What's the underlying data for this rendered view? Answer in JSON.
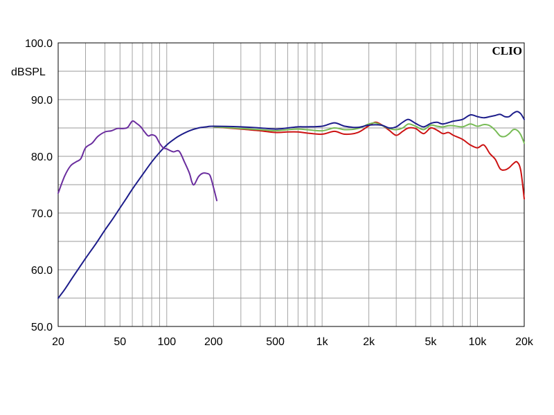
{
  "chart_data": {
    "type": "line",
    "brand": "CLIO",
    "ylabel": "dBSPL",
    "xscale": "log",
    "xlim": [
      20,
      20000
    ],
    "ylim": [
      50,
      100
    ],
    "grid": true,
    "y_ticks": [
      {
        "value": 100,
        "label": "100.0"
      },
      {
        "value": 90,
        "label": "90.0"
      },
      {
        "value": 80,
        "label": "80.0"
      },
      {
        "value": 70,
        "label": "70.0"
      },
      {
        "value": 60,
        "label": "60.0"
      },
      {
        "value": 50,
        "label": "50.0"
      }
    ],
    "x_ticks": [
      {
        "value": 20,
        "label": "20"
      },
      {
        "value": 50,
        "label": "50"
      },
      {
        "value": 100,
        "label": "100"
      },
      {
        "value": 200,
        "label": "200"
      },
      {
        "value": 500,
        "label": "500"
      },
      {
        "value": 1000,
        "label": "1k"
      },
      {
        "value": 2000,
        "label": "2k"
      },
      {
        "value": 5000,
        "label": "5k"
      },
      {
        "value": 10000,
        "label": "10k"
      },
      {
        "value": 20000,
        "label": "20k"
      }
    ],
    "series": [
      {
        "color": "#cc1111",
        "points": [
          [
            200,
            85.2
          ],
          [
            300,
            84.8
          ],
          [
            400,
            84.5
          ],
          [
            500,
            84.2
          ],
          [
            600,
            84.3
          ],
          [
            700,
            84.3
          ],
          [
            800,
            84.1
          ],
          [
            1000,
            83.9
          ],
          [
            1200,
            84.4
          ],
          [
            1400,
            83.9
          ],
          [
            1700,
            84.2
          ],
          [
            2000,
            85.4
          ],
          [
            2200,
            86.0
          ],
          [
            2400,
            85.6
          ],
          [
            2700,
            84.6
          ],
          [
            3000,
            83.7
          ],
          [
            3300,
            84.4
          ],
          [
            3600,
            85.0
          ],
          [
            4000,
            84.9
          ],
          [
            4500,
            84.0
          ],
          [
            5000,
            85.0
          ],
          [
            5500,
            84.6
          ],
          [
            6000,
            84.0
          ],
          [
            6500,
            84.2
          ],
          [
            7000,
            83.7
          ],
          [
            8000,
            83.0
          ],
          [
            9000,
            82.0
          ],
          [
            10000,
            81.5
          ],
          [
            11000,
            82.0
          ],
          [
            12000,
            80.5
          ],
          [
            13000,
            79.5
          ],
          [
            14000,
            77.8
          ],
          [
            15000,
            77.6
          ],
          [
            16000,
            78.0
          ],
          [
            17000,
            78.7
          ],
          [
            18000,
            79.0
          ],
          [
            19000,
            77.5
          ],
          [
            20000,
            72.5
          ]
        ]
      },
      {
        "color": "#77bb55",
        "points": [
          [
            200,
            85.2
          ],
          [
            300,
            84.9
          ],
          [
            400,
            84.7
          ],
          [
            500,
            84.5
          ],
          [
            600,
            84.7
          ],
          [
            700,
            84.8
          ],
          [
            800,
            84.7
          ],
          [
            1000,
            84.5
          ],
          [
            1200,
            85.0
          ],
          [
            1400,
            84.7
          ],
          [
            1700,
            84.9
          ],
          [
            2000,
            85.7
          ],
          [
            2200,
            85.9
          ],
          [
            2400,
            85.5
          ],
          [
            2700,
            84.9
          ],
          [
            3000,
            84.7
          ],
          [
            3300,
            85.0
          ],
          [
            3600,
            85.7
          ],
          [
            4000,
            85.3
          ],
          [
            4500,
            84.7
          ],
          [
            5000,
            85.5
          ],
          [
            5500,
            85.3
          ],
          [
            6000,
            85.2
          ],
          [
            6500,
            85.4
          ],
          [
            7000,
            85.4
          ],
          [
            8000,
            85.2
          ],
          [
            9000,
            85.7
          ],
          [
            10000,
            85.3
          ],
          [
            11000,
            85.6
          ],
          [
            12000,
            85.4
          ],
          [
            13000,
            84.6
          ],
          [
            14000,
            83.6
          ],
          [
            15000,
            83.5
          ],
          [
            16000,
            84.0
          ],
          [
            17000,
            84.7
          ],
          [
            18000,
            84.6
          ],
          [
            19000,
            83.8
          ],
          [
            20000,
            82.3
          ]
        ]
      },
      {
        "color": "#1c1c8a",
        "points": [
          [
            20,
            55.0
          ],
          [
            22,
            56.5
          ],
          [
            25,
            58.8
          ],
          [
            30,
            62.0
          ],
          [
            35,
            64.6
          ],
          [
            40,
            67.0
          ],
          [
            45,
            69.0
          ],
          [
            50,
            70.9
          ],
          [
            55,
            72.6
          ],
          [
            60,
            74.2
          ],
          [
            70,
            76.8
          ],
          [
            80,
            79.0
          ],
          [
            90,
            80.7
          ],
          [
            100,
            82.0
          ],
          [
            110,
            82.9
          ],
          [
            120,
            83.6
          ],
          [
            140,
            84.5
          ],
          [
            160,
            85.0
          ],
          [
            180,
            85.2
          ],
          [
            200,
            85.3
          ],
          [
            300,
            85.2
          ],
          [
            400,
            85.0
          ],
          [
            500,
            84.8
          ],
          [
            600,
            85.0
          ],
          [
            700,
            85.2
          ],
          [
            800,
            85.2
          ],
          [
            1000,
            85.3
          ],
          [
            1200,
            85.9
          ],
          [
            1400,
            85.3
          ],
          [
            1700,
            85.1
          ],
          [
            2000,
            85.5
          ],
          [
            2400,
            85.5
          ],
          [
            2700,
            85.0
          ],
          [
            3000,
            85.2
          ],
          [
            3300,
            86.0
          ],
          [
            3600,
            86.5
          ],
          [
            4000,
            85.8
          ],
          [
            4500,
            85.2
          ],
          [
            5000,
            85.8
          ],
          [
            5500,
            86.0
          ],
          [
            6000,
            85.7
          ],
          [
            7000,
            86.2
          ],
          [
            8000,
            86.5
          ],
          [
            9000,
            87.3
          ],
          [
            10000,
            87.0
          ],
          [
            11000,
            86.8
          ],
          [
            12000,
            87.0
          ],
          [
            13000,
            87.2
          ],
          [
            14000,
            87.4
          ],
          [
            15000,
            87.0
          ],
          [
            16000,
            87.0
          ],
          [
            17000,
            87.6
          ],
          [
            18000,
            87.9
          ],
          [
            19000,
            87.5
          ],
          [
            20000,
            86.5
          ]
        ]
      },
      {
        "color": "#6a2d9e",
        "points": [
          [
            20,
            73.5
          ],
          [
            22,
            76.5
          ],
          [
            24,
            78.3
          ],
          [
            26,
            79.0
          ],
          [
            28,
            79.6
          ],
          [
            30,
            81.5
          ],
          [
            33,
            82.3
          ],
          [
            36,
            83.5
          ],
          [
            40,
            84.3
          ],
          [
            44,
            84.5
          ],
          [
            48,
            84.9
          ],
          [
            52,
            84.9
          ],
          [
            56,
            85.1
          ],
          [
            60,
            86.2
          ],
          [
            64,
            85.8
          ],
          [
            68,
            85.2
          ],
          [
            72,
            84.3
          ],
          [
            76,
            83.6
          ],
          [
            80,
            83.8
          ],
          [
            85,
            83.5
          ],
          [
            90,
            82.3
          ],
          [
            95,
            81.5
          ],
          [
            100,
            81.3
          ],
          [
            110,
            80.8
          ],
          [
            120,
            80.9
          ],
          [
            130,
            79.0
          ],
          [
            140,
            77.0
          ],
          [
            145,
            75.5
          ],
          [
            150,
            75.0
          ],
          [
            160,
            76.4
          ],
          [
            170,
            77.0
          ],
          [
            180,
            77.0
          ],
          [
            190,
            76.6
          ],
          [
            200,
            74.5
          ],
          [
            210,
            72.2
          ]
        ]
      }
    ]
  }
}
